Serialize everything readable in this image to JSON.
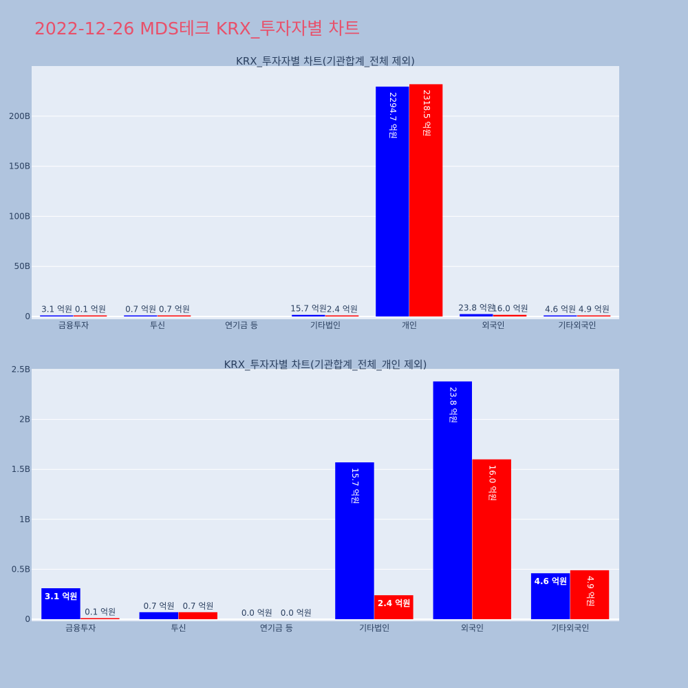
{
  "page_title": "2022-12-26 MDS테크 KRX_투자자별 차트",
  "colors": {
    "series_a": "#0000ff",
    "series_b": "#ff0000",
    "plot_bg": "#e5ecf6",
    "page_bg": "#b0c4de",
    "title": "#e8506a",
    "text": "#2a3f5f"
  },
  "chart_data": [
    {
      "type": "bar",
      "title": "KRX_투자자별 차트(기관합계_전체 제외)",
      "categories": [
        "금융투자",
        "투신",
        "연기금 등",
        "기타법인",
        "개인",
        "외국인",
        "기타외국인"
      ],
      "ylim": [
        0,
        250
      ],
      "yticks": [
        0,
        50,
        100,
        150,
        200
      ],
      "ytick_labels": [
        "0",
        "50B",
        "100B",
        "150B",
        "200B"
      ],
      "series": [
        {
          "values": [
            0.31,
            0.07,
            0,
            1.57,
            229.47,
            2.38,
            0.46
          ],
          "labels": [
            "3.1 억원",
            "0.7 억원",
            "",
            "15.7 억원",
            "2294.7 억원",
            "23.8 억원",
            "4.6 억원"
          ]
        },
        {
          "values": [
            0.01,
            0.07,
            0,
            0.24,
            231.85,
            1.6,
            0.49
          ],
          "labels": [
            "0.1 억원",
            "0.7 억원",
            "",
            "2.4 억원",
            "2318.5 억원",
            "16.0 억원",
            "4.9 억원"
          ]
        }
      ]
    },
    {
      "type": "bar",
      "title": "KRX_투자자별 차트(기관합계_전체_개인 제외)",
      "categories": [
        "금융투자",
        "투신",
        "연기금 등",
        "기타법인",
        "외국인",
        "기타외국인"
      ],
      "ylim": [
        0,
        2.5
      ],
      "yticks": [
        0,
        0.5,
        1,
        1.5,
        2,
        2.5
      ],
      "ytick_labels": [
        "0",
        "0.5B",
        "1B",
        "1.5B",
        "2B",
        "2.5B"
      ],
      "series": [
        {
          "values": [
            0.31,
            0.07,
            0,
            1.57,
            2.38,
            0.46
          ],
          "labels": [
            "3.1 억원",
            "0.7 억원",
            "0.0 억원",
            "15.7 억원",
            "23.8 억원",
            "4.6 억원"
          ]
        },
        {
          "values": [
            0.01,
            0.07,
            0,
            0.24,
            1.6,
            0.49
          ],
          "labels": [
            "0.1 억원",
            "0.7 억원",
            "0.0 억원",
            "2.4 억원",
            "16.0 억원",
            "4.9 억원"
          ]
        }
      ]
    }
  ]
}
